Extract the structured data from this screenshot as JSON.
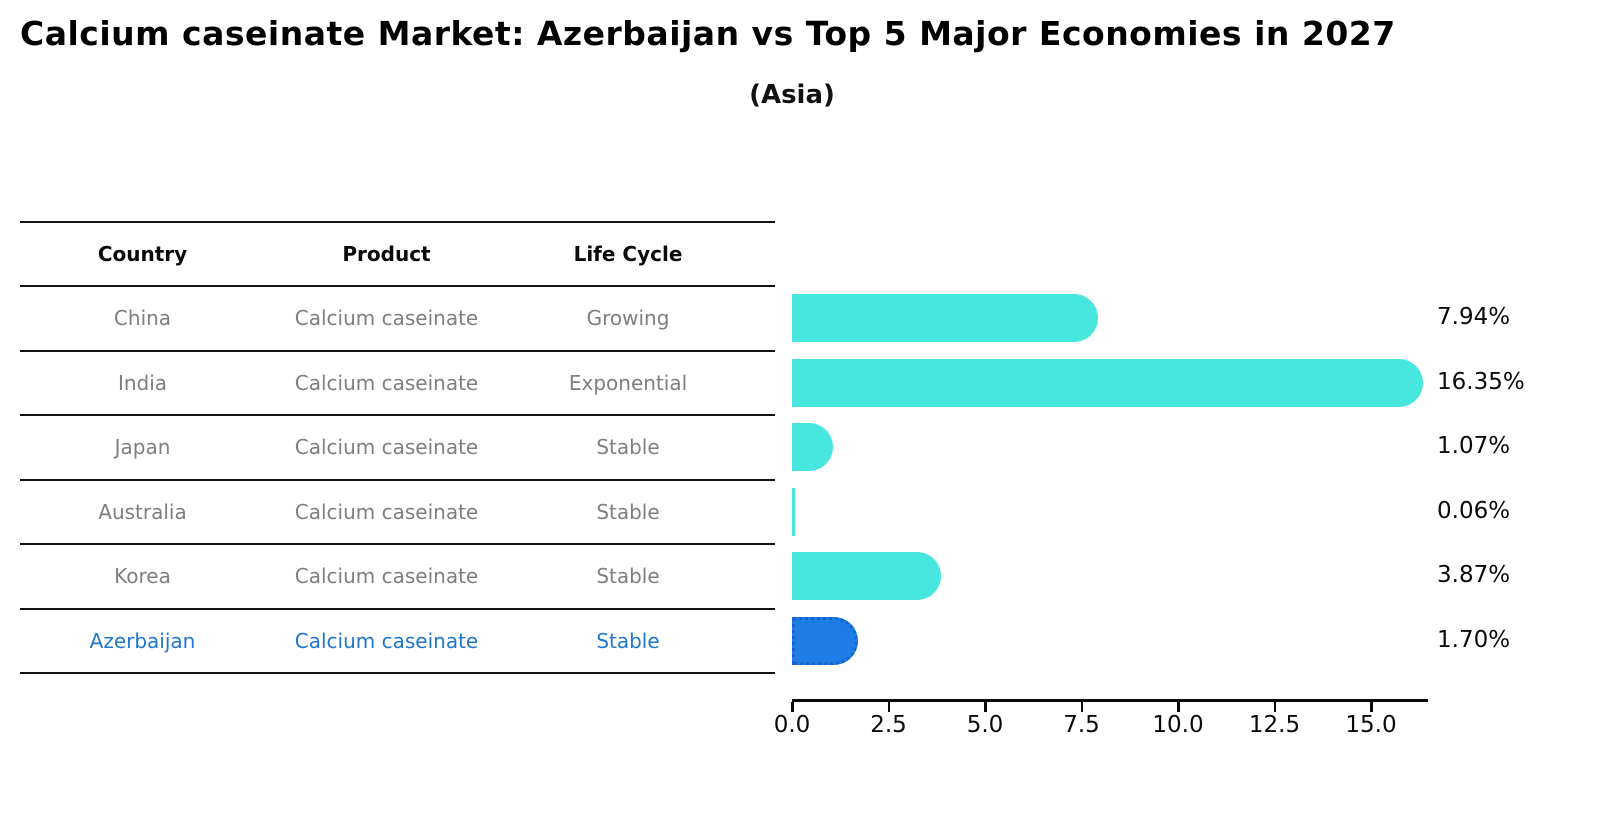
{
  "title": "Calcium caseinate Market: Azerbaijan vs Top 5 Major Economies in 2027",
  "subtitle": "(Asia)",
  "table": {
    "headers": [
      "Country",
      "Product",
      "Life Cycle"
    ],
    "rows": [
      {
        "country": "China",
        "product": "Calcium caseinate",
        "life_cycle": "Growing",
        "highlight": false
      },
      {
        "country": "India",
        "product": "Calcium caseinate",
        "life_cycle": "Exponential",
        "highlight": false
      },
      {
        "country": "Japan",
        "product": "Calcium caseinate",
        "life_cycle": "Stable",
        "highlight": false
      },
      {
        "country": "Australia",
        "product": "Calcium caseinate",
        "life_cycle": "Stable",
        "highlight": false
      },
      {
        "country": "Korea",
        "product": "Calcium caseinate",
        "life_cycle": "Stable",
        "highlight": false
      },
      {
        "country": "Azerbaijan",
        "product": "Calcium caseinate",
        "life_cycle": "Stable",
        "highlight": true
      }
    ]
  },
  "chart_data": {
    "type": "bar",
    "orientation": "horizontal",
    "title": "Calcium caseinate Market: Azerbaijan vs Top 5 Major Economies in 2027",
    "subtitle": "(Asia)",
    "categories": [
      "China",
      "India",
      "Japan",
      "Australia",
      "Korea",
      "Azerbaijan"
    ],
    "values": [
      7.94,
      16.35,
      1.07,
      0.06,
      3.87,
      1.7
    ],
    "value_labels": [
      "7.94%",
      "16.35%",
      "1.07%",
      "0.06%",
      "3.87%",
      "1.70%"
    ],
    "xlabel": "",
    "ylabel": "",
    "xticks": [
      0.0,
      2.5,
      5.0,
      7.5,
      10.0,
      12.5,
      15.0
    ],
    "xtick_labels": [
      "0.0",
      "2.5",
      "5.0",
      "7.5",
      "10.0",
      "12.5",
      "15.0"
    ],
    "xlim": [
      0,
      16.5
    ],
    "grid": false,
    "legend": null,
    "highlight_index": 5
  },
  "colors": {
    "bar": "#47E6DE",
    "highlight_bar": "#1E7CE6",
    "highlight_border": "#1565C8",
    "highlight_text": "#1F77CE",
    "muted_text": "#7F7F7F",
    "text": "#0A0A0A"
  }
}
